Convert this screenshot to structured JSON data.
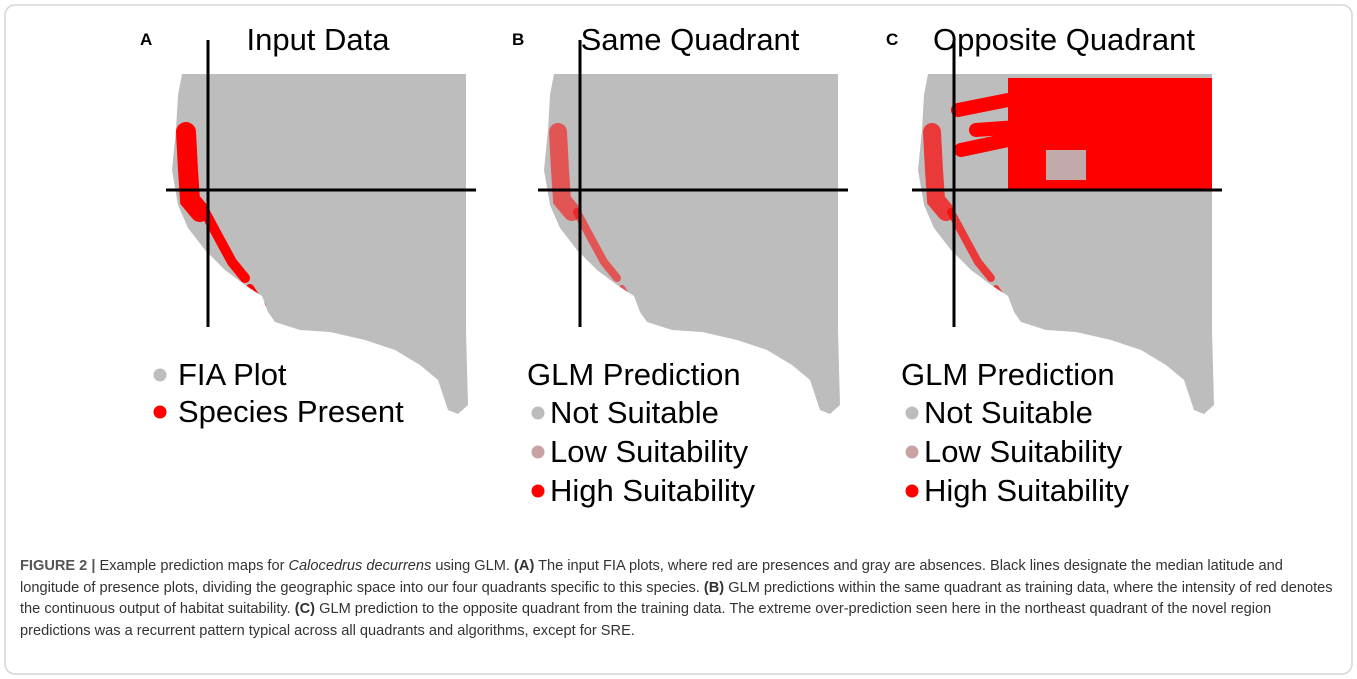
{
  "panels": [
    {
      "letter": "A",
      "title": "Input Data",
      "legend": [
        {
          "label": "FIA Plot",
          "color": "#bdbdbd"
        },
        {
          "label": "Species Present",
          "color": "#ff0000"
        }
      ]
    },
    {
      "letter": "B",
      "title": "Same Quadrant",
      "legend_title": "GLM Prediction",
      "legend": [
        {
          "label": "Not Suitable",
          "color": "#bdbdbd"
        },
        {
          "label": "Low Suitability",
          "color": "#c9a3a3"
        },
        {
          "label": "High Suitability",
          "color": "#ff0000"
        }
      ]
    },
    {
      "letter": "C",
      "title": "Opposite Quadrant",
      "legend_title": "GLM Prediction",
      "legend": [
        {
          "label": "Not Suitable",
          "color": "#bdbdbd"
        },
        {
          "label": "Low Suitability",
          "color": "#c9a3a3"
        },
        {
          "label": "High Suitability",
          "color": "#ff0000"
        }
      ]
    }
  ],
  "caption": {
    "label": "FIGURE 2 |",
    "parts": [
      "Example prediction maps for",
      "Calocedrus decurrens",
      "using GLM.",
      "(A)",
      "The input FIA plots, where red are presences and gray are absences. Black lines designate the median latitude and longitude of presence plots, dividing the geographic space into our four quadrants specific to this species.",
      "(B)",
      "GLM predictions within the same quadrant as training data, where the intensity of red denotes the continuous output of habitat suitability.",
      "(C)",
      "GLM prediction to the opposite quadrant from the training data. The extreme over-prediction seen here in the northeast quadrant of the novel region predictions was a recurrent pattern typical across all quadrants and algorithms, except for SRE."
    ]
  }
}
